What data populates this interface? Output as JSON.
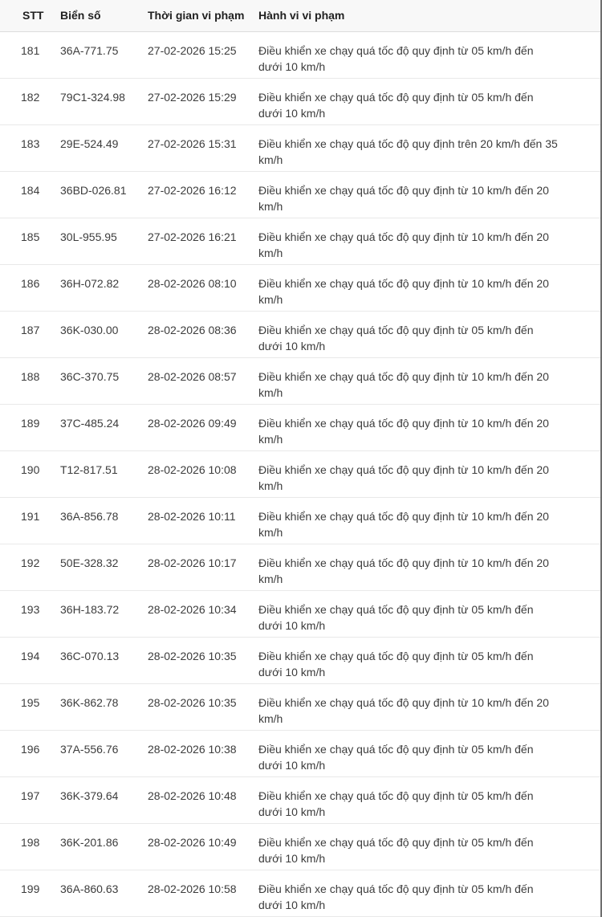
{
  "table": {
    "columns": [
      {
        "key": "stt",
        "label": "STT"
      },
      {
        "key": "bien_so",
        "label": "Biển số"
      },
      {
        "key": "thoi_gian",
        "label": "Thời gian vi phạm"
      },
      {
        "key": "hanh_vi",
        "label": "Hành vi vi phạm"
      }
    ],
    "rows": [
      {
        "stt": "181",
        "bien_so": "36A-771.75",
        "thoi_gian": "27-02-2026 15:25",
        "hanh_vi": "Điều khiển xe chạy quá tốc độ quy định từ 05 km/h đến\ndưới 10 km/h"
      },
      {
        "stt": "182",
        "bien_so": "79C1-324.98",
        "thoi_gian": "27-02-2026 15:29",
        "hanh_vi": "Điều khiển xe chạy quá tốc độ quy định từ 05 km/h đến\ndưới 10 km/h"
      },
      {
        "stt": "183",
        "bien_so": "29E-524.49",
        "thoi_gian": "27-02-2026 15:31",
        "hanh_vi": "Điều khiển xe chạy quá tốc độ quy định trên 20 km/h đến 35\nkm/h"
      },
      {
        "stt": "184",
        "bien_so": "36BD-026.81",
        "thoi_gian": "27-02-2026 16:12",
        "hanh_vi": "Điều khiển xe chạy quá tốc độ quy định từ 10 km/h đến 20\nkm/h"
      },
      {
        "stt": "185",
        "bien_so": "30L-955.95",
        "thoi_gian": "27-02-2026 16:21",
        "hanh_vi": "Điều khiển xe chạy quá tốc độ quy định từ 10 km/h đến 20\nkm/h"
      },
      {
        "stt": "186",
        "bien_so": "36H-072.82",
        "thoi_gian": "28-02-2026 08:10",
        "hanh_vi": "Điều khiển xe chạy quá tốc độ quy định từ 10 km/h đến 20\nkm/h"
      },
      {
        "stt": "187",
        "bien_so": "36K-030.00",
        "thoi_gian": "28-02-2026 08:36",
        "hanh_vi": "Điều khiển xe chạy quá tốc độ quy định từ 05 km/h đến\ndưới 10 km/h"
      },
      {
        "stt": "188",
        "bien_so": "36C-370.75",
        "thoi_gian": "28-02-2026 08:57",
        "hanh_vi": "Điều khiển xe chạy quá tốc độ quy định từ 10 km/h đến 20\nkm/h"
      },
      {
        "stt": "189",
        "bien_so": "37C-485.24",
        "thoi_gian": "28-02-2026 09:49",
        "hanh_vi": "Điều khiển xe chạy quá tốc độ quy định từ 10 km/h đến 20\nkm/h"
      },
      {
        "stt": "190",
        "bien_so": "T12-817.51",
        "thoi_gian": "28-02-2026 10:08",
        "hanh_vi": "Điều khiển xe chạy quá tốc độ quy định từ 10 km/h đến 20\nkm/h"
      },
      {
        "stt": "191",
        "bien_so": "36A-856.78",
        "thoi_gian": "28-02-2026 10:11",
        "hanh_vi": "Điều khiển xe chạy quá tốc độ quy định từ 10 km/h đến 20\nkm/h"
      },
      {
        "stt": "192",
        "bien_so": "50E-328.32",
        "thoi_gian": "28-02-2026 10:17",
        "hanh_vi": "Điều khiển xe chạy quá tốc độ quy định từ 10 km/h đến 20\nkm/h"
      },
      {
        "stt": "193",
        "bien_so": "36H-183.72",
        "thoi_gian": "28-02-2026 10:34",
        "hanh_vi": "Điều khiển xe chạy quá tốc độ quy định từ 05 km/h đến\ndưới 10 km/h"
      },
      {
        "stt": "194",
        "bien_so": "36C-070.13",
        "thoi_gian": "28-02-2026 10:35",
        "hanh_vi": "Điều khiển xe chạy quá tốc độ quy định từ 05 km/h đến\ndưới 10 km/h"
      },
      {
        "stt": "195",
        "bien_so": "36K-862.78",
        "thoi_gian": "28-02-2026 10:35",
        "hanh_vi": "Điều khiển xe chạy quá tốc độ quy định từ 10 km/h đến 20\nkm/h"
      },
      {
        "stt": "196",
        "bien_so": "37A-556.76",
        "thoi_gian": "28-02-2026 10:38",
        "hanh_vi": "Điều khiển xe chạy quá tốc độ quy định từ 05 km/h đến\ndưới 10 km/h"
      },
      {
        "stt": "197",
        "bien_so": "36K-379.64",
        "thoi_gian": "28-02-2026 10:48",
        "hanh_vi": "Điều khiển xe chạy quá tốc độ quy định từ 05 km/h đến\ndưới 10 km/h"
      },
      {
        "stt": "198",
        "bien_so": "36K-201.86",
        "thoi_gian": "28-02-2026 10:49",
        "hanh_vi": "Điều khiển xe chạy quá tốc độ quy định từ 05 km/h đến\ndưới 10 km/h"
      },
      {
        "stt": "199",
        "bien_so": "36A-860.63",
        "thoi_gian": "28-02-2026 10:58",
        "hanh_vi": "Điều khiển xe chạy quá tốc độ quy định từ 05 km/h đến\ndưới 10 km/h"
      }
    ]
  },
  "colors": {
    "header_bg": "#f8f8f8",
    "header_text": "#212121",
    "body_text": "#3c3c3c",
    "header_divider": "#dcdcdc",
    "row_divider": "#e9e9e9",
    "right_edge_line": "#6e6e6e"
  }
}
